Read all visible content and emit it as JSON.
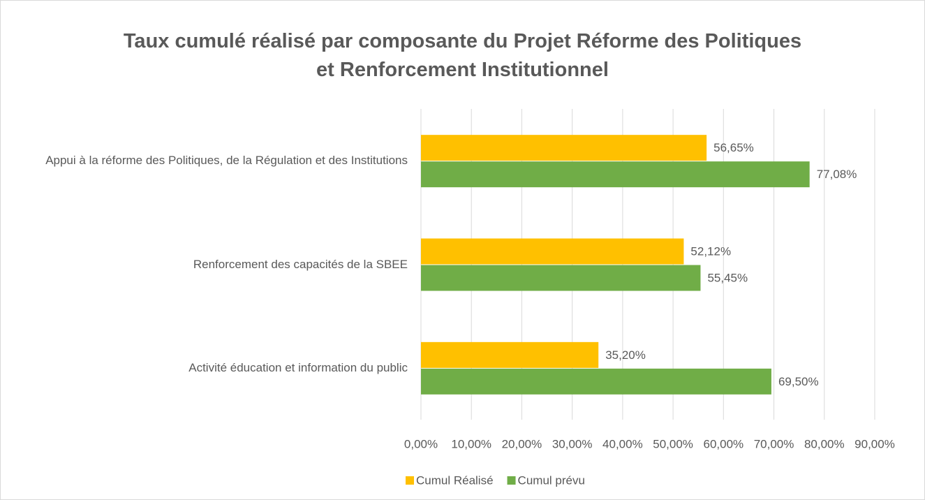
{
  "chart_data": {
    "type": "barh",
    "title": "Taux cumulé réalisé par composante du Projet Réforme des Politiques et Renforcement Institutionnel",
    "categories": [
      "Appui à la réforme des Politiques, de la Régulation et des Institutions",
      "Renforcement des capacités de la SBEE",
      "Activité éducation et information du public"
    ],
    "series": [
      {
        "name": "Cumul Réalisé",
        "color": "#FFC000",
        "values": [
          56.65,
          52.12,
          35.2
        ],
        "value_labels": [
          "56,65%",
          "52,12%",
          "35,20%"
        ]
      },
      {
        "name": "Cumul prévu",
        "color": "#70AD47",
        "values": [
          77.08,
          55.45,
          69.5
        ],
        "value_labels": [
          "77,08%",
          "55,45%",
          "69,50%"
        ]
      }
    ],
    "xlim": [
      0,
      90
    ],
    "xticks": [
      {
        "value": 0,
        "label": "0,00%"
      },
      {
        "value": 10,
        "label": "10,00%"
      },
      {
        "value": 20,
        "label": "20,00%"
      },
      {
        "value": 30,
        "label": "30,00%"
      },
      {
        "value": 40,
        "label": "40,00%"
      },
      {
        "value": 50,
        "label": "50,00%"
      },
      {
        "value": 60,
        "label": "60,00%"
      },
      {
        "value": 70,
        "label": "70,00%"
      },
      {
        "value": 80,
        "label": "80,00%"
      },
      {
        "value": 90,
        "label": "90,00%"
      }
    ],
    "grid": true,
    "legend": "bottom"
  }
}
